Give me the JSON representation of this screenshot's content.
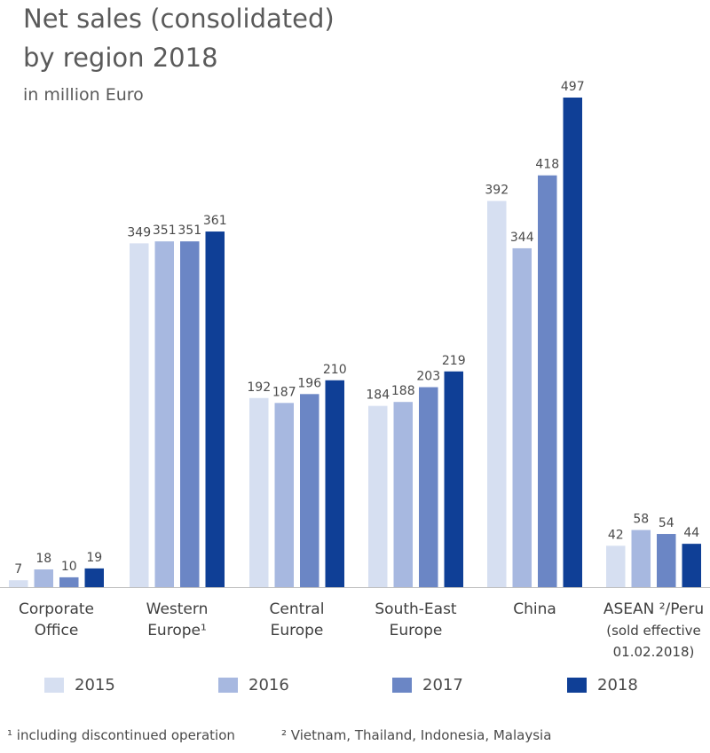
{
  "header": {
    "title_line1": "Net sales (consolidated)",
    "title_line2": "by region 2018",
    "subtitle": "in million Euro"
  },
  "colors": {
    "2015": "#d6dff1",
    "2016": "#a7b8e0",
    "2017": "#6b86c5",
    "2018": "#0f3f96",
    "baseline": "#bfbfbf"
  },
  "chart_data": {
    "type": "bar",
    "title": "Net sales (consolidated) by region 2018",
    "unit": "in million Euro",
    "categories": [
      [
        "Corporate",
        "Office"
      ],
      [
        "Western",
        "Europe¹"
      ],
      [
        "Central",
        "Europe"
      ],
      [
        "South-East",
        "Europe"
      ],
      [
        "China"
      ],
      [
        "ASEAN ²/Peru",
        "(sold effective",
        "01.02.2018)"
      ]
    ],
    "series": [
      {
        "name": "2015",
        "values": [
          7,
          349,
          192,
          184,
          392,
          42
        ]
      },
      {
        "name": "2016",
        "values": [
          18,
          351,
          187,
          188,
          344,
          58
        ]
      },
      {
        "name": "2017",
        "values": [
          10,
          351,
          196,
          203,
          418,
          54
        ]
      },
      {
        "name": "2018",
        "values": [
          19,
          361,
          210,
          219,
          497,
          44
        ]
      }
    ],
    "ylim": [
      0,
      497
    ],
    "grid": false,
    "legend_position": "bottom"
  },
  "footnotes": {
    "note1": "¹ including discontinued operation",
    "note2": "² Vietnam, Thailand, Indonesia, Malaysia"
  }
}
